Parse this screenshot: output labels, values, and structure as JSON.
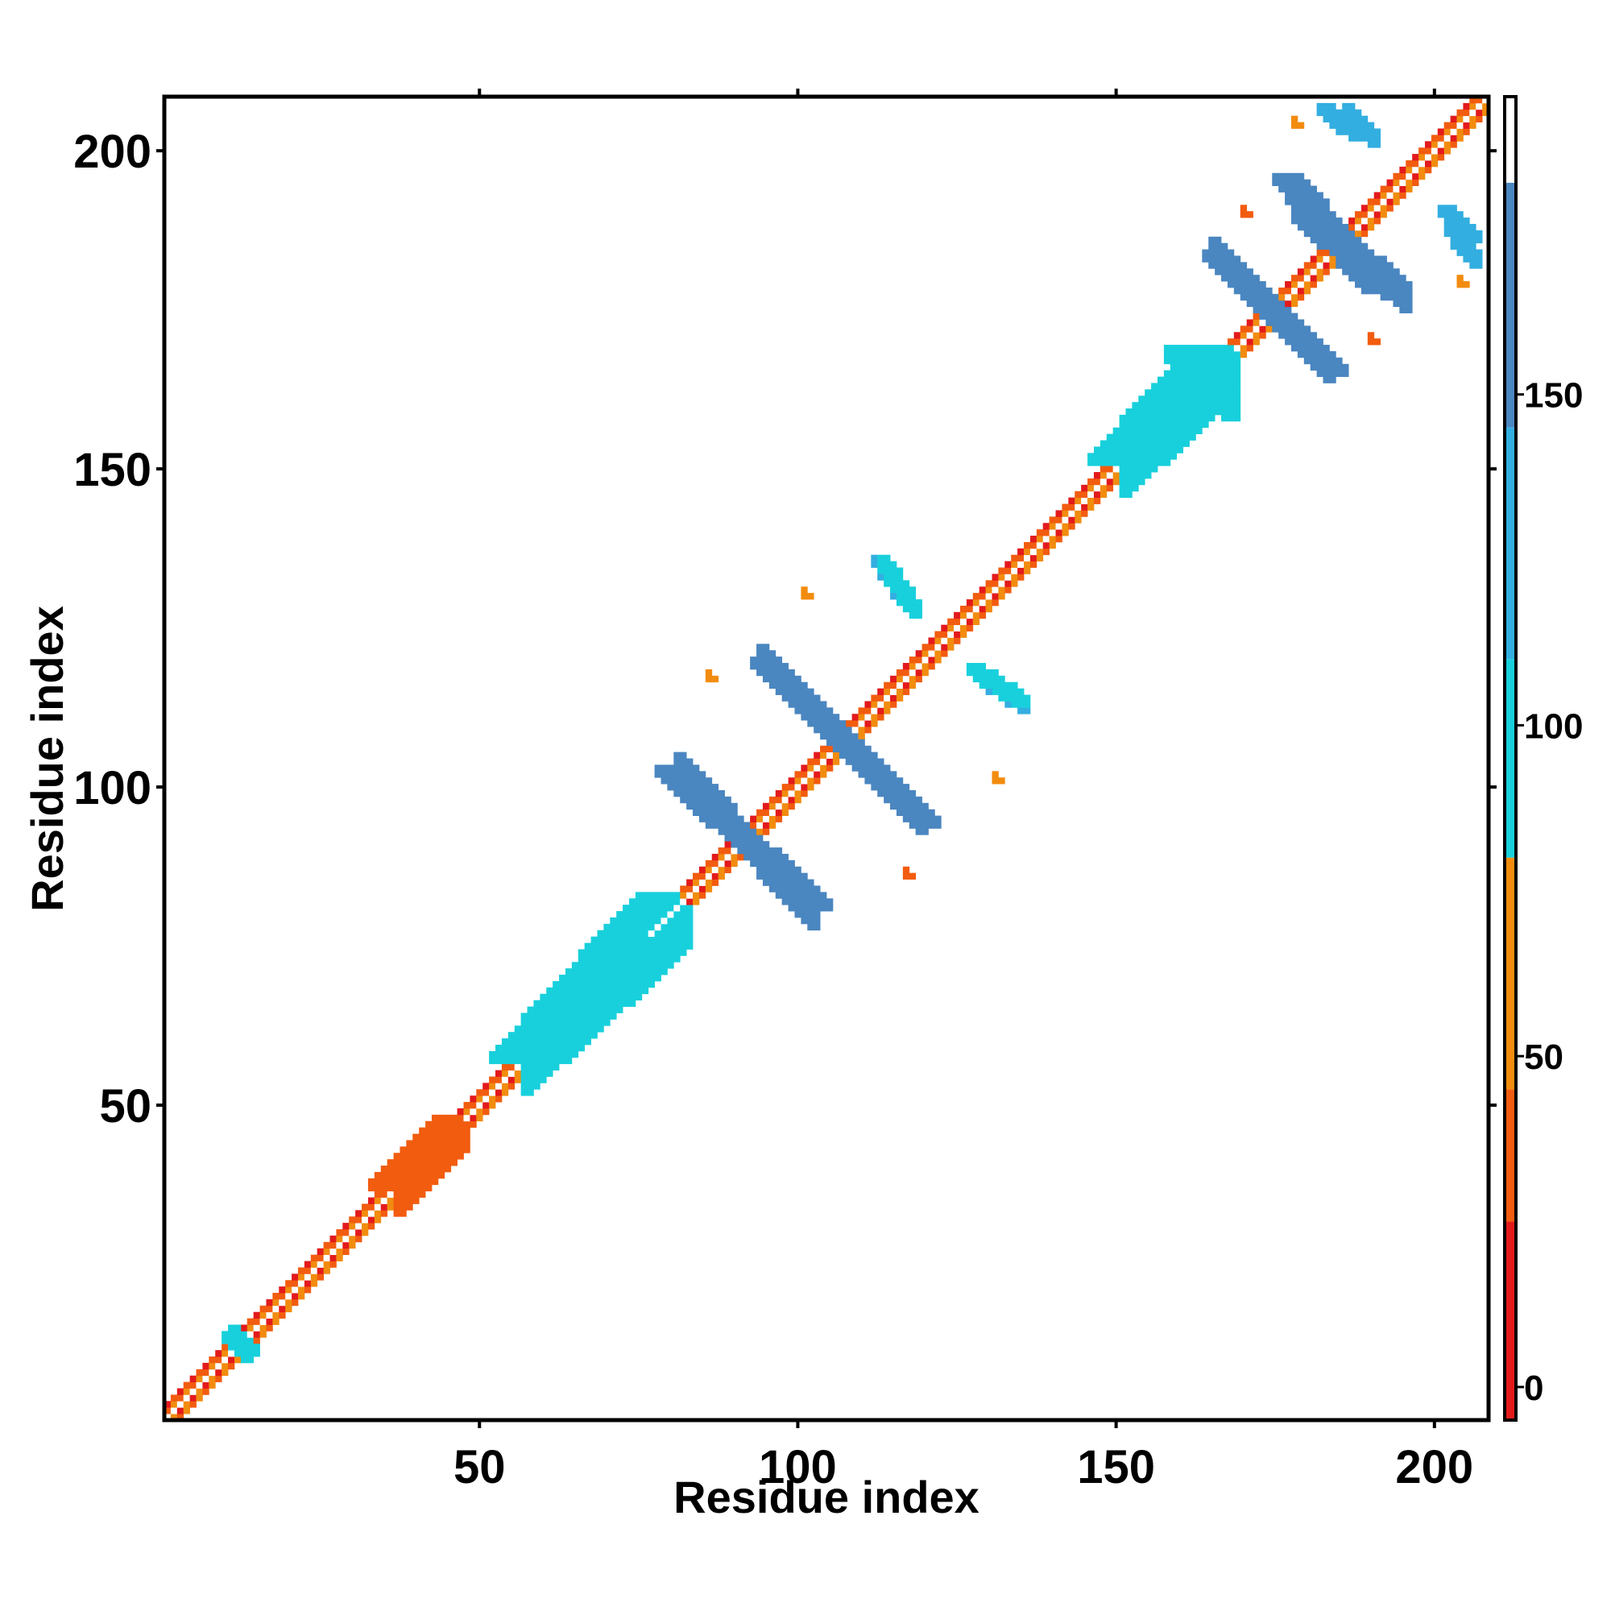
{
  "chart_data": {
    "type": "heatmap",
    "title": "",
    "xlabel": "Residue index",
    "ylabel": "Residue index",
    "xlim": [
      1,
      208
    ],
    "ylim": [
      1,
      208
    ],
    "x_ticks": [
      50,
      100,
      150,
      200
    ],
    "y_ticks": [
      50,
      100,
      150,
      200
    ],
    "colorbar": {
      "range": [
        -5,
        195
      ],
      "ticks": [
        0,
        50,
        100,
        150
      ],
      "bands": [
        {
          "from": -5,
          "to": 25,
          "color": "#e31a1c"
        },
        {
          "from": 25,
          "to": 45,
          "color": "#f25c0f"
        },
        {
          "from": 45,
          "to": 80,
          "color": "#f28c0f"
        },
        {
          "from": 80,
          "to": 110,
          "color": "#18d0dc"
        },
        {
          "from": 110,
          "to": 145,
          "color": "#33aee0"
        },
        {
          "from": 145,
          "to": 182,
          "color": "#4a86c0"
        },
        {
          "from": 182,
          "to": 195,
          "color": "#ffffff"
        }
      ]
    },
    "diagonal_band": {
      "x_range": [
        1,
        208
      ],
      "color_sequence": [
        "#e31a1c",
        "#f28c0f",
        "#ffffff",
        "#f25c0f"
      ]
    },
    "contact_segments": [
      {
        "name": "helix-band-55-78",
        "from": [
          55,
          57
        ],
        "to": [
          78,
          82
        ],
        "half_width": 3,
        "color": "#18d0dc"
      },
      {
        "name": "helix-band-150-165",
        "from": [
          149,
          151
        ],
        "to": [
          165,
          168
        ],
        "half_width": 3,
        "color": "#18d0dc"
      },
      {
        "name": "helix-band-35-45",
        "from": [
          35,
          37
        ],
        "to": [
          45,
          47
        ],
        "half_width": 2,
        "color": "#f25c0f"
      },
      {
        "name": "sheet-cross-92-a",
        "from": [
          80,
          102
        ],
        "to": [
          103,
          81
        ],
        "half_width": 2,
        "color": "#4a86c0"
      },
      {
        "name": "sheet-cross-107-a",
        "from": [
          95,
          119
        ],
        "to": [
          120,
          94
        ],
        "half_width": 2,
        "color": "#4a86c0"
      },
      {
        "name": "sheet-cross-175-a",
        "from": [
          166,
          183
        ],
        "to": [
          184,
          165
        ],
        "half_width": 2,
        "color": "#4a86c0"
      },
      {
        "name": "sheet-cross-186-a",
        "from": [
          177,
          195
        ],
        "to": [
          191,
          178
        ],
        "half_width": 2,
        "color": "#4a86c0"
      },
      {
        "name": "contact-115-130",
        "from": [
          113,
          135
        ],
        "to": [
          118,
          128
        ],
        "half_width": 1,
        "color": "#33aee0"
      },
      {
        "name": "contact-130-115",
        "from": [
          128,
          118
        ],
        "to": [
          135,
          113
        ],
        "half_width": 1,
        "color": "#18d0dc"
      },
      {
        "name": "contact-185-205",
        "from": [
          183,
          206
        ],
        "to": [
          188,
          202
        ],
        "half_width": 1,
        "color": "#33aee0"
      },
      {
        "name": "contact-205-185",
        "from": [
          202,
          190
        ],
        "to": [
          206,
          186
        ],
        "half_width": 1,
        "color": "#33aee0"
      },
      {
        "name": "contact-160-168",
        "from": [
          160,
          168
        ],
        "to": [
          164,
          160
        ],
        "half_width": 2,
        "color": "#18d0dc"
      },
      {
        "name": "contact-12-14",
        "from": [
          11,
          13
        ],
        "to": [
          14,
          11
        ],
        "half_width": 1,
        "color": "#18d0dc"
      }
    ],
    "contact_points": [
      {
        "x": 86,
        "y": 117,
        "color": "#f28c0f"
      },
      {
        "x": 101,
        "y": 130,
        "color": "#f28c0f"
      },
      {
        "x": 117,
        "y": 86,
        "color": "#f25c0f"
      },
      {
        "x": 131,
        "y": 101,
        "color": "#f28c0f"
      },
      {
        "x": 170,
        "y": 190,
        "color": "#f25c0f"
      },
      {
        "x": 190,
        "y": 170,
        "color": "#f25c0f"
      },
      {
        "x": 178,
        "y": 204,
        "color": "#f28c0f"
      },
      {
        "x": 204,
        "y": 179,
        "color": "#f28c0f"
      }
    ]
  }
}
